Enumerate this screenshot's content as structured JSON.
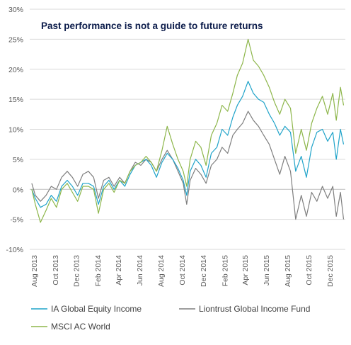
{
  "chart_data": {
    "type": "line",
    "title": "Past performance is not a guide to future returns",
    "xlabel": "",
    "ylabel": "",
    "ylim": [
      -10,
      30
    ],
    "yticks": [
      -10,
      -5,
      0,
      5,
      10,
      15,
      20,
      25,
      30
    ],
    "ytick_labels": [
      "-10%",
      "-5%",
      "0%",
      "5%",
      "10%",
      "15%",
      "20%",
      "25%",
      "30%"
    ],
    "xlim": [
      "2013-07-20",
      "2016-01-15"
    ],
    "xticks": [
      "2013-08-01",
      "2013-10-01",
      "2013-12-01",
      "2014-02-01",
      "2014-04-01",
      "2014-06-01",
      "2014-08-01",
      "2014-10-01",
      "2014-12-01",
      "2015-02-01",
      "2015-04-01",
      "2015-06-01",
      "2015-08-01",
      "2015-10-01",
      "2015-12-01"
    ],
    "xtick_labels": [
      "Aug 2013",
      "Oct 2013",
      "Dec 2013",
      "Feb 2014",
      "Apr 2014",
      "Jun 2014",
      "Aug 2014",
      "Oct 2014",
      "Dec 2014",
      "Feb 2015",
      "Apr 2015",
      "Jun 2015",
      "Aug 2015",
      "Oct 2015",
      "Dec 2015"
    ],
    "grid": "horizontal",
    "legend_position": "bottom",
    "series": [
      {
        "name": "IA Global Equity Income",
        "color": "#1fa3c9",
        "points": [
          [
            "2013-07-26",
            0
          ],
          [
            "2013-08-05",
            -1.5
          ],
          [
            "2013-08-20",
            -3.0
          ],
          [
            "2013-09-05",
            -2.5
          ],
          [
            "2013-09-20",
            -1.0
          ],
          [
            "2013-10-05",
            -2.0
          ],
          [
            "2013-10-20",
            0.5
          ],
          [
            "2013-11-05",
            1.5
          ],
          [
            "2013-11-20",
            0.5
          ],
          [
            "2013-12-05",
            -1.0
          ],
          [
            "2013-12-20",
            1.0
          ],
          [
            "2014-01-05",
            1.0
          ],
          [
            "2014-01-20",
            0.5
          ],
          [
            "2014-02-03",
            -2.5
          ],
          [
            "2014-02-18",
            0.5
          ],
          [
            "2014-03-05",
            1.5
          ],
          [
            "2014-03-20",
            0.0
          ],
          [
            "2014-04-05",
            1.5
          ],
          [
            "2014-04-20",
            0.5
          ],
          [
            "2014-05-05",
            2.5
          ],
          [
            "2014-05-20",
            4.0
          ],
          [
            "2014-06-05",
            4.5
          ],
          [
            "2014-06-20",
            5.0
          ],
          [
            "2014-07-05",
            4.0
          ],
          [
            "2014-07-20",
            2.0
          ],
          [
            "2014-08-05",
            4.5
          ],
          [
            "2014-08-20",
            6.0
          ],
          [
            "2014-09-05",
            5.0
          ],
          [
            "2014-09-20",
            3.5
          ],
          [
            "2014-10-05",
            1.5
          ],
          [
            "2014-10-15",
            -1.0
          ],
          [
            "2014-10-25",
            3.0
          ],
          [
            "2014-11-10",
            5.0
          ],
          [
            "2014-11-25",
            4.0
          ],
          [
            "2014-12-10",
            2.0
          ],
          [
            "2014-12-25",
            6.0
          ],
          [
            "2015-01-10",
            7.0
          ],
          [
            "2015-01-25",
            10.0
          ],
          [
            "2015-02-10",
            9.0
          ],
          [
            "2015-02-25",
            12.0
          ],
          [
            "2015-03-10",
            14.0
          ],
          [
            "2015-03-25",
            15.5
          ],
          [
            "2015-04-10",
            18.0
          ],
          [
            "2015-04-25",
            16.0
          ],
          [
            "2015-05-10",
            15.0
          ],
          [
            "2015-05-25",
            14.5
          ],
          [
            "2015-06-10",
            12.5
          ],
          [
            "2015-06-25",
            11.0
          ],
          [
            "2015-07-10",
            9.0
          ],
          [
            "2015-07-25",
            10.5
          ],
          [
            "2015-08-10",
            9.5
          ],
          [
            "2015-08-25",
            3.0
          ],
          [
            "2015-09-10",
            5.5
          ],
          [
            "2015-09-25",
            2.0
          ],
          [
            "2015-10-10",
            7.0
          ],
          [
            "2015-10-25",
            9.5
          ],
          [
            "2015-11-10",
            10.0
          ],
          [
            "2015-11-25",
            8.0
          ],
          [
            "2015-12-10",
            9.5
          ],
          [
            "2015-12-20",
            5.0
          ],
          [
            "2016-01-01",
            10.0
          ],
          [
            "2016-01-10",
            7.5
          ]
        ]
      },
      {
        "name": "Liontrust Global Income Fund",
        "color": "#7f7f7f",
        "points": [
          [
            "2013-07-26",
            1.0
          ],
          [
            "2013-08-05",
            -1.0
          ],
          [
            "2013-08-20",
            -2.0
          ],
          [
            "2013-09-05",
            -1.0
          ],
          [
            "2013-09-20",
            0.5
          ],
          [
            "2013-10-05",
            0.0
          ],
          [
            "2013-10-20",
            2.0
          ],
          [
            "2013-11-05",
            3.0
          ],
          [
            "2013-11-20",
            2.0
          ],
          [
            "2013-12-05",
            0.5
          ],
          [
            "2013-12-20",
            2.5
          ],
          [
            "2014-01-05",
            3.0
          ],
          [
            "2014-01-20",
            2.0
          ],
          [
            "2014-02-03",
            -1.5
          ],
          [
            "2014-02-18",
            1.5
          ],
          [
            "2014-03-05",
            2.0
          ],
          [
            "2014-03-20",
            0.5
          ],
          [
            "2014-04-05",
            2.0
          ],
          [
            "2014-04-20",
            1.0
          ],
          [
            "2014-05-05",
            3.0
          ],
          [
            "2014-05-20",
            4.5
          ],
          [
            "2014-06-05",
            4.0
          ],
          [
            "2014-06-20",
            5.0
          ],
          [
            "2014-07-05",
            4.5
          ],
          [
            "2014-07-20",
            3.0
          ],
          [
            "2014-08-05",
            5.0
          ],
          [
            "2014-08-20",
            6.5
          ],
          [
            "2014-09-05",
            5.0
          ],
          [
            "2014-09-20",
            3.0
          ],
          [
            "2014-10-05",
            1.0
          ],
          [
            "2014-10-15",
            -2.5
          ],
          [
            "2014-10-25",
            1.5
          ],
          [
            "2014-11-10",
            3.5
          ],
          [
            "2014-11-25",
            2.5
          ],
          [
            "2014-12-10",
            1.0
          ],
          [
            "2014-12-25",
            4.0
          ],
          [
            "2015-01-10",
            5.0
          ],
          [
            "2015-01-25",
            7.0
          ],
          [
            "2015-02-10",
            6.0
          ],
          [
            "2015-02-25",
            9.0
          ],
          [
            "2015-03-10",
            10.0
          ],
          [
            "2015-03-25",
            11.0
          ],
          [
            "2015-04-10",
            13.0
          ],
          [
            "2015-04-25",
            11.5
          ],
          [
            "2015-05-10",
            10.5
          ],
          [
            "2015-05-25",
            9.0
          ],
          [
            "2015-06-10",
            7.5
          ],
          [
            "2015-06-25",
            5.0
          ],
          [
            "2015-07-10",
            2.5
          ],
          [
            "2015-07-25",
            5.5
          ],
          [
            "2015-08-10",
            3.0
          ],
          [
            "2015-08-25",
            -5.0
          ],
          [
            "2015-09-10",
            -1.0
          ],
          [
            "2015-09-25",
            -4.5
          ],
          [
            "2015-10-10",
            -0.5
          ],
          [
            "2015-10-25",
            -2.0
          ],
          [
            "2015-11-10",
            0.5
          ],
          [
            "2015-11-25",
            -1.5
          ],
          [
            "2015-12-10",
            0.5
          ],
          [
            "2015-12-20",
            -4.5
          ],
          [
            "2016-01-01",
            -0.5
          ],
          [
            "2016-01-10",
            -5.0
          ]
        ]
      },
      {
        "name": "MSCI AC World",
        "color": "#8db64a",
        "points": [
          [
            "2013-07-26",
            0
          ],
          [
            "2013-08-05",
            -2.5
          ],
          [
            "2013-08-20",
            -5.5
          ],
          [
            "2013-09-05",
            -3.5
          ],
          [
            "2013-09-20",
            -1.5
          ],
          [
            "2013-10-05",
            -3.0
          ],
          [
            "2013-10-20",
            0.0
          ],
          [
            "2013-11-05",
            1.0
          ],
          [
            "2013-11-20",
            -0.5
          ],
          [
            "2013-12-05",
            -2.0
          ],
          [
            "2013-12-20",
            0.5
          ],
          [
            "2014-01-05",
            0.5
          ],
          [
            "2014-01-20",
            0.0
          ],
          [
            "2014-02-03",
            -4.0
          ],
          [
            "2014-02-18",
            0.0
          ],
          [
            "2014-03-05",
            1.0
          ],
          [
            "2014-03-20",
            -0.5
          ],
          [
            "2014-04-05",
            1.5
          ],
          [
            "2014-04-20",
            1.0
          ],
          [
            "2014-05-05",
            3.0
          ],
          [
            "2014-05-20",
            4.0
          ],
          [
            "2014-06-05",
            4.5
          ],
          [
            "2014-06-20",
            5.5
          ],
          [
            "2014-07-05",
            4.5
          ],
          [
            "2014-07-20",
            3.0
          ],
          [
            "2014-08-05",
            6.5
          ],
          [
            "2014-08-20",
            10.5
          ],
          [
            "2014-09-05",
            7.5
          ],
          [
            "2014-09-20",
            5.0
          ],
          [
            "2014-10-05",
            3.0
          ],
          [
            "2014-10-15",
            0.5
          ],
          [
            "2014-10-25",
            5.0
          ],
          [
            "2014-11-10",
            8.0
          ],
          [
            "2014-11-25",
            7.0
          ],
          [
            "2014-12-10",
            4.0
          ],
          [
            "2014-12-25",
            9.0
          ],
          [
            "2015-01-10",
            11.0
          ],
          [
            "2015-01-25",
            14.0
          ],
          [
            "2015-02-10",
            13.0
          ],
          [
            "2015-02-25",
            16.0
          ],
          [
            "2015-03-10",
            19.0
          ],
          [
            "2015-03-25",
            21.0
          ],
          [
            "2015-04-10",
            25.0
          ],
          [
            "2015-04-25",
            21.5
          ],
          [
            "2015-05-10",
            20.5
          ],
          [
            "2015-05-25",
            19.0
          ],
          [
            "2015-06-10",
            17.0
          ],
          [
            "2015-06-25",
            14.5
          ],
          [
            "2015-07-10",
            12.5
          ],
          [
            "2015-07-25",
            15.0
          ],
          [
            "2015-08-10",
            13.5
          ],
          [
            "2015-08-25",
            6.0
          ],
          [
            "2015-09-10",
            10.0
          ],
          [
            "2015-09-25",
            6.5
          ],
          [
            "2015-10-10",
            11.0
          ],
          [
            "2015-10-25",
            13.5
          ],
          [
            "2015-11-10",
            15.5
          ],
          [
            "2015-11-25",
            12.5
          ],
          [
            "2015-12-10",
            16.0
          ],
          [
            "2015-12-20",
            11.5
          ],
          [
            "2016-01-01",
            17.0
          ],
          [
            "2016-01-10",
            14.0
          ]
        ]
      }
    ]
  }
}
